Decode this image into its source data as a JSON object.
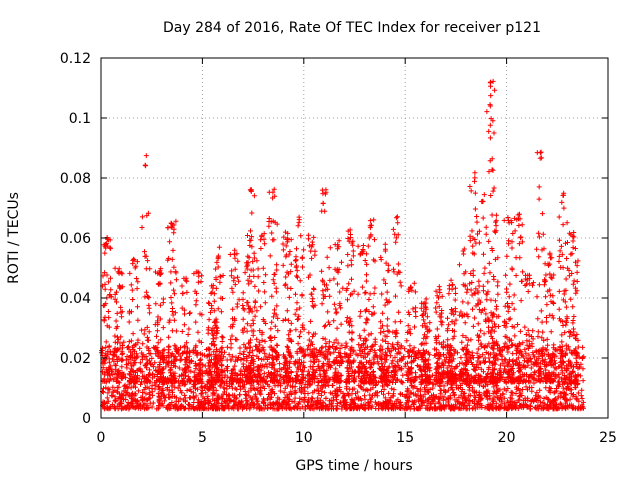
{
  "chart_data": {
    "type": "scatter",
    "title": "Day 284 of 2016, Rate Of TEC Index for receiver p121",
    "xlabel": "GPS time / hours",
    "ylabel": "ROTI / TECUs",
    "xlim": [
      0,
      25
    ],
    "ylim": [
      0,
      0.12
    ],
    "xticks": [
      "0",
      "5",
      "10",
      "15",
      "20",
      "25"
    ],
    "yticks": [
      "0",
      "0.02",
      "0.04",
      "0.06",
      "0.08",
      "0.1",
      "0.12"
    ],
    "grid": true,
    "marker": "+",
    "color": "#ff0000",
    "x_range_of_data": [
      0,
      23.8
    ],
    "baseline_range": [
      0.003,
      0.02
    ],
    "bursts": [
      {
        "x": 0.3,
        "y": 0.061
      },
      {
        "x": 0.9,
        "y": 0.05
      },
      {
        "x": 1.6,
        "y": 0.055
      },
      {
        "x": 2.2,
        "y": 0.088
      },
      {
        "x": 2.9,
        "y": 0.05
      },
      {
        "x": 3.5,
        "y": 0.066
      },
      {
        "x": 4.2,
        "y": 0.047
      },
      {
        "x": 4.8,
        "y": 0.05
      },
      {
        "x": 5.5,
        "y": 0.045
      },
      {
        "x": 5.8,
        "y": 0.057
      },
      {
        "x": 6.6,
        "y": 0.056
      },
      {
        "x": 7.2,
        "y": 0.052
      },
      {
        "x": 7.4,
        "y": 0.079
      },
      {
        "x": 7.9,
        "y": 0.062
      },
      {
        "x": 8.5,
        "y": 0.077
      },
      {
        "x": 9.2,
        "y": 0.062
      },
      {
        "x": 9.8,
        "y": 0.069
      },
      {
        "x": 10.4,
        "y": 0.061
      },
      {
        "x": 11.1,
        "y": 0.078
      },
      {
        "x": 11.7,
        "y": 0.06
      },
      {
        "x": 12.3,
        "y": 0.063
      },
      {
        "x": 12.9,
        "y": 0.058
      },
      {
        "x": 13.3,
        "y": 0.067
      },
      {
        "x": 14.0,
        "y": 0.059
      },
      {
        "x": 14.6,
        "y": 0.068
      },
      {
        "x": 15.3,
        "y": 0.045
      },
      {
        "x": 16.0,
        "y": 0.04
      },
      {
        "x": 16.7,
        "y": 0.044
      },
      {
        "x": 17.3,
        "y": 0.046
      },
      {
        "x": 17.9,
        "y": 0.058
      },
      {
        "x": 18.4,
        "y": 0.082
      },
      {
        "x": 18.8,
        "y": 0.075
      },
      {
        "x": 19.2,
        "y": 0.114
      },
      {
        "x": 19.5,
        "y": 0.068
      },
      {
        "x": 20.1,
        "y": 0.067
      },
      {
        "x": 20.6,
        "y": 0.068
      },
      {
        "x": 21.1,
        "y": 0.048
      },
      {
        "x": 21.7,
        "y": 0.09
      },
      {
        "x": 22.1,
        "y": 0.055
      },
      {
        "x": 22.8,
        "y": 0.076
      },
      {
        "x": 23.3,
        "y": 0.064
      }
    ]
  }
}
